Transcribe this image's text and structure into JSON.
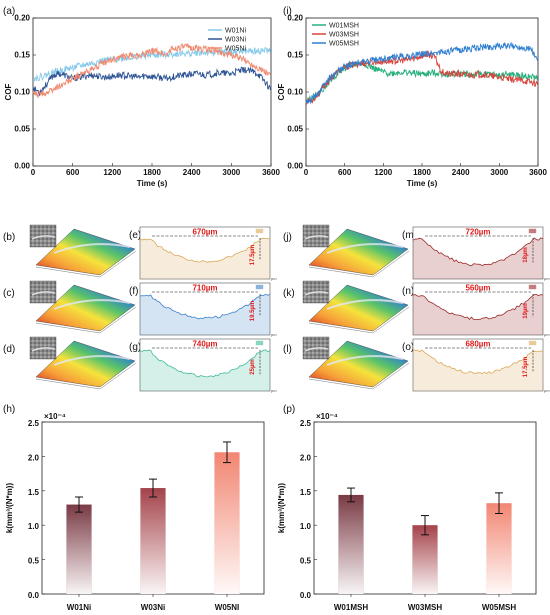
{
  "chart_data": [
    {
      "id": "a",
      "type": "line",
      "panel_label": "(a)",
      "xlabel": "Time (s)",
      "ylabel": "COF",
      "xlim": [
        0,
        3600
      ],
      "ylim": [
        0,
        0.2
      ],
      "xticks": [
        0,
        600,
        1200,
        1800,
        2400,
        3000,
        3600
      ],
      "yticks": [
        0.0,
        0.05,
        0.1,
        0.15,
        0.2
      ],
      "legend_position": "top-right",
      "series": [
        {
          "name": "W01Ni",
          "color": "#86c9ea",
          "x": [
            0,
            100,
            200,
            300,
            400,
            500,
            600,
            700,
            800,
            900,
            1000,
            1100,
            1200,
            1300,
            1400,
            1500,
            1600,
            1700,
            1800,
            1900,
            2000,
            2100,
            2200,
            2300,
            2400,
            2500,
            2600,
            2700,
            2800,
            2900,
            3000,
            3100,
            3200,
            3300,
            3400,
            3500,
            3600
          ],
          "y": [
            0.118,
            0.12,
            0.123,
            0.126,
            0.129,
            0.131,
            0.133,
            0.135,
            0.137,
            0.139,
            0.141,
            0.143,
            0.144,
            0.145,
            0.146,
            0.147,
            0.148,
            0.149,
            0.15,
            0.15,
            0.151,
            0.151,
            0.152,
            0.152,
            0.152,
            0.153,
            0.153,
            0.153,
            0.154,
            0.154,
            0.154,
            0.155,
            0.155,
            0.155,
            0.155,
            0.156,
            0.156
          ]
        },
        {
          "name": "W03Ni",
          "color": "#2f5596",
          "x": [
            0,
            100,
            200,
            300,
            400,
            500,
            600,
            700,
            800,
            900,
            1000,
            1100,
            1200,
            1300,
            1400,
            1500,
            1600,
            1700,
            1800,
            1900,
            2000,
            2100,
            2200,
            2300,
            2400,
            2500,
            2600,
            2700,
            2800,
            2900,
            3000,
            3100,
            3200,
            3300,
            3400,
            3500,
            3600
          ],
          "y": [
            0.105,
            0.1,
            0.11,
            0.122,
            0.125,
            0.122,
            0.118,
            0.12,
            0.122,
            0.123,
            0.121,
            0.12,
            0.121,
            0.123,
            0.122,
            0.121,
            0.12,
            0.122,
            0.121,
            0.12,
            0.118,
            0.12,
            0.122,
            0.123,
            0.124,
            0.125,
            0.123,
            0.124,
            0.126,
            0.125,
            0.125,
            0.128,
            0.13,
            0.128,
            0.125,
            0.115,
            0.103
          ]
        },
        {
          "name": "W05Ni",
          "color": "#f08a70",
          "x": [
            0,
            100,
            200,
            300,
            400,
            500,
            600,
            700,
            800,
            900,
            1000,
            1100,
            1200,
            1300,
            1400,
            1500,
            1600,
            1700,
            1800,
            1900,
            2000,
            2100,
            2200,
            2300,
            2400,
            2500,
            2600,
            2700,
            2800,
            2900,
            3000,
            3100,
            3200,
            3300,
            3400,
            3500,
            3600
          ],
          "y": [
            0.098,
            0.097,
            0.099,
            0.103,
            0.108,
            0.113,
            0.118,
            0.122,
            0.127,
            0.131,
            0.136,
            0.14,
            0.144,
            0.147,
            0.148,
            0.149,
            0.15,
            0.152,
            0.155,
            0.155,
            0.15,
            0.158,
            0.16,
            0.161,
            0.16,
            0.159,
            0.158,
            0.157,
            0.155,
            0.152,
            0.15,
            0.147,
            0.143,
            0.138,
            0.133,
            0.128,
            0.122
          ]
        }
      ]
    },
    {
      "id": "i",
      "type": "line",
      "panel_label": "(i)",
      "xlabel": "Time (s)",
      "ylabel": "COF",
      "xlim": [
        0,
        3600
      ],
      "ylim": [
        0,
        0.2
      ],
      "xticks": [
        0,
        600,
        1200,
        1800,
        2400,
        3000,
        3600
      ],
      "yticks": [
        0.0,
        0.05,
        0.1,
        0.15,
        0.2
      ],
      "legend_position": "top-left",
      "series": [
        {
          "name": "W01MSH",
          "color": "#27b07e",
          "x": [
            0,
            100,
            200,
            300,
            400,
            500,
            600,
            700,
            800,
            900,
            1000,
            1100,
            1200,
            1300,
            1400,
            1500,
            1600,
            1700,
            1800,
            1900,
            2000,
            2100,
            2200,
            2300,
            2400,
            2500,
            2600,
            2700,
            2800,
            2900,
            3000,
            3100,
            3200,
            3300,
            3400,
            3500,
            3600
          ],
          "y": [
            0.09,
            0.092,
            0.098,
            0.108,
            0.118,
            0.126,
            0.132,
            0.136,
            0.138,
            0.139,
            0.134,
            0.13,
            0.127,
            0.125,
            0.126,
            0.127,
            0.126,
            0.125,
            0.124,
            0.125,
            0.126,
            0.125,
            0.124,
            0.124,
            0.125,
            0.124,
            0.123,
            0.125,
            0.124,
            0.123,
            0.122,
            0.124,
            0.123,
            0.122,
            0.121,
            0.12,
            0.119
          ]
        },
        {
          "name": "W03MSH",
          "color": "#d8423a",
          "x": [
            0,
            100,
            200,
            300,
            400,
            500,
            600,
            700,
            800,
            900,
            1000,
            1100,
            1200,
            1300,
            1400,
            1500,
            1600,
            1700,
            1800,
            1900,
            2000,
            2100,
            2200,
            2300,
            2400,
            2500,
            2600,
            2700,
            2800,
            2900,
            3000,
            3100,
            3200,
            3300,
            3400,
            3500,
            3600
          ],
          "y": [
            0.087,
            0.09,
            0.098,
            0.11,
            0.12,
            0.128,
            0.133,
            0.136,
            0.138,
            0.139,
            0.14,
            0.141,
            0.141,
            0.142,
            0.142,
            0.143,
            0.144,
            0.146,
            0.149,
            0.151,
            0.147,
            0.128,
            0.124,
            0.125,
            0.124,
            0.123,
            0.123,
            0.124,
            0.123,
            0.121,
            0.12,
            0.118,
            0.117,
            0.116,
            0.115,
            0.113,
            0.111
          ]
        },
        {
          "name": "W05MSH",
          "color": "#2f7fd0",
          "x": [
            0,
            100,
            200,
            300,
            400,
            500,
            600,
            700,
            800,
            900,
            1000,
            1100,
            1200,
            1300,
            1400,
            1500,
            1600,
            1700,
            1800,
            1900,
            2000,
            2100,
            2200,
            2300,
            2400,
            2500,
            2600,
            2700,
            2800,
            2900,
            3000,
            3100,
            3200,
            3300,
            3400,
            3500,
            3600
          ],
          "y": [
            0.085,
            0.091,
            0.1,
            0.112,
            0.122,
            0.129,
            0.134,
            0.137,
            0.139,
            0.141,
            0.142,
            0.143,
            0.145,
            0.146,
            0.147,
            0.148,
            0.149,
            0.15,
            0.151,
            0.152,
            0.153,
            0.154,
            0.155,
            0.156,
            0.157,
            0.158,
            0.159,
            0.16,
            0.161,
            0.161,
            0.162,
            0.162,
            0.162,
            0.161,
            0.16,
            0.158,
            0.14
          ]
        }
      ]
    },
    {
      "id": "h",
      "type": "bar",
      "panel_label": "(h)",
      "ylabel": "k(mm³/(N*m))",
      "multiplier": "×10⁻⁴",
      "ylim": [
        0,
        2.5
      ],
      "yticks": [
        0.0,
        0.5,
        1.0,
        1.5,
        2.0,
        2.5
      ],
      "categories": [
        "W01Ni",
        "W03Ni",
        "W05NI"
      ],
      "values": [
        1.3,
        1.54,
        2.06
      ],
      "errors": [
        0.11,
        0.13,
        0.15
      ],
      "colors": [
        "#7a3a44",
        "#a4434a",
        "#f28672"
      ]
    },
    {
      "id": "p",
      "type": "bar",
      "panel_label": "(p)",
      "ylabel": "k(mm³/(N*m))",
      "multiplier": "×10⁻⁴",
      "ylim": [
        0,
        2.5
      ],
      "yticks": [
        0.0,
        0.5,
        1.0,
        1.5,
        2.0,
        2.5
      ],
      "categories": [
        "W01MSH",
        "W03MSH",
        "W05MSH"
      ],
      "values": [
        1.44,
        1.0,
        1.32
      ],
      "errors": [
        0.1,
        0.14,
        0.15
      ],
      "colors": [
        "#7a3a44",
        "#a4434a",
        "#f28672"
      ]
    }
  ],
  "profiles": [
    {
      "label": "(e)",
      "width": "670µm",
      "depth": "17.5µm",
      "color": "#d9a95a",
      "unit": "µm"
    },
    {
      "label": "(f)",
      "width": "710µm",
      "depth": "19.5µm",
      "color": "#3f82c8",
      "unit": "µm"
    },
    {
      "label": "(g)",
      "width": "740µm",
      "depth": "25µm",
      "color": "#3fb99a",
      "unit": "µm"
    },
    {
      "label": "(m)",
      "width": "720µm",
      "depth": "18µm",
      "color": "#9c2a2a",
      "unit": "µm"
    },
    {
      "label": "(n)",
      "width": "560µm",
      "depth": "19µm",
      "color": "#9c2a2a",
      "unit": "µm"
    },
    {
      "label": "(o)",
      "width": "680µm",
      "depth": "17.5µm",
      "color": "#d9a95a",
      "unit": "µm"
    }
  ],
  "surface_maps": [
    {
      "label": "(b)"
    },
    {
      "label": "(c)"
    },
    {
      "label": "(d)"
    },
    {
      "label": "(j)"
    },
    {
      "label": "(k)"
    },
    {
      "label": "(l)"
    }
  ]
}
